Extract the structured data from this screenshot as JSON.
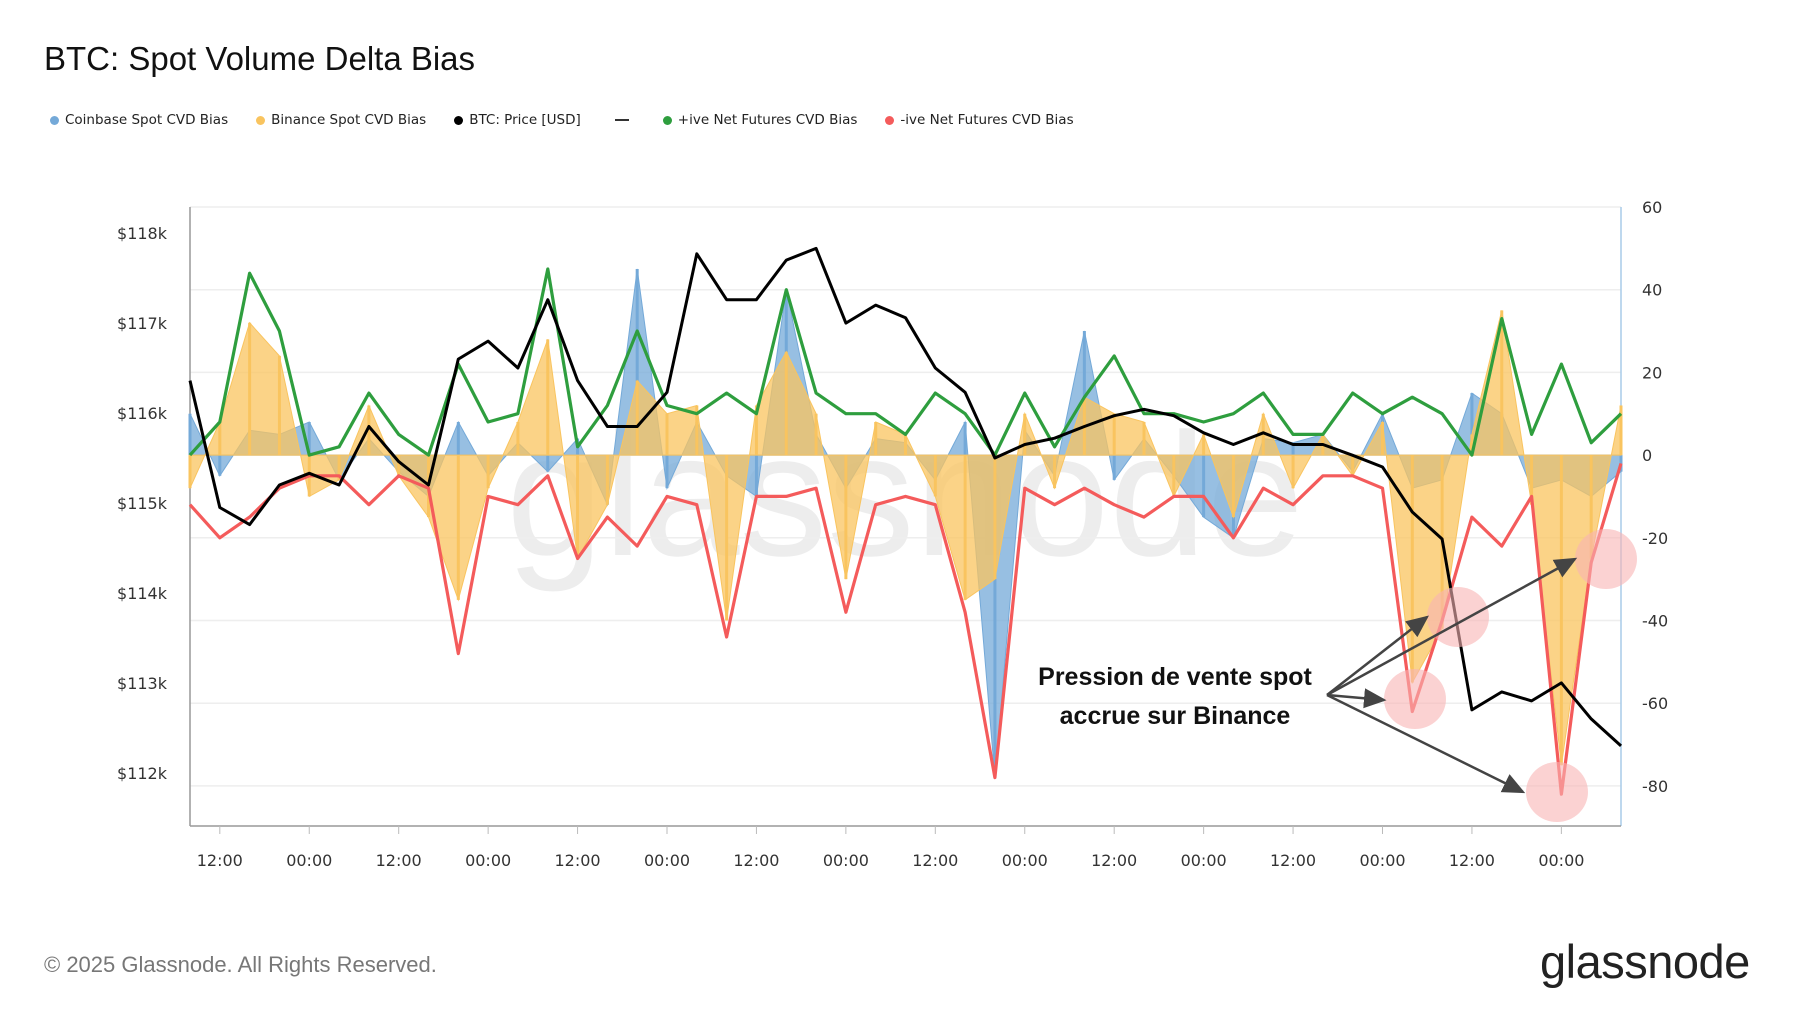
{
  "title": "BTC: Spot Volume Delta Bias",
  "legend": [
    {
      "label": "Coinbase Spot CVD Bias",
      "color": "#74a9d8"
    },
    {
      "label": "Binance Spot CVD Bias",
      "color": "#f9c45f"
    },
    {
      "label": "BTC: Price [USD]",
      "color": "#000000"
    },
    {
      "label": "+ive Net Futures CVD Bias",
      "color": "#2e9e3e"
    },
    {
      "label": "-ive Net Futures CVD Bias",
      "color": "#f45b5b"
    }
  ],
  "annotation": {
    "line1": "Pression de vente spot",
    "line2": "accrue sur Binance",
    "highlight_color": "#f8b4b4"
  },
  "watermark": "glassnode",
  "footer": "© 2025 Glassnode. All Rights Reserved.",
  "logo": "glassnode",
  "chart_data": {
    "type": "line",
    "title": "BTC: Spot Volume Delta Bias",
    "grid": true,
    "legend_position": "top-left",
    "left_axis": {
      "ticks": [
        "$118k",
        "$117k",
        "$116k",
        "$115k",
        "$114k",
        "$113k",
        "$112k"
      ],
      "tick_values": [
        118,
        117,
        116,
        115,
        114,
        113,
        112
      ],
      "range": [
        111.41,
        118.29
      ],
      "unit": "k USD"
    },
    "right_axis": {
      "ticks": [
        "60",
        "40",
        "20",
        "0",
        "-20",
        "-40",
        "-60",
        "-80"
      ],
      "tick_values": [
        60,
        40,
        20,
        0,
        -20,
        -40,
        -60,
        -80
      ],
      "range": [
        -89.7,
        60
      ]
    },
    "x": [
      "08:00",
      "12:00",
      "16:00",
      "20:00",
      "00:00",
      "04:00",
      "08:00",
      "12:00",
      "16:00",
      "20:00",
      "00:00",
      "04:00",
      "08:00",
      "12:00",
      "16:00",
      "20:00",
      "00:00",
      "04:00",
      "08:00",
      "12:00",
      "16:00",
      "20:00",
      "00:00",
      "04:00",
      "08:00",
      "12:00",
      "16:00",
      "20:00",
      "00:00",
      "04:00",
      "08:00",
      "12:00",
      "16:00",
      "20:00",
      "00:00",
      "04:00",
      "08:00",
      "12:00",
      "16:00",
      "20:00",
      "00:00",
      "04:00",
      "08:00",
      "12:00",
      "16:00",
      "20:00",
      "00:00",
      "04:00",
      "08:00"
    ],
    "x_tick_labels": [
      "12:00",
      "00:00"
    ],
    "series": [
      {
        "name": "Coinbase Spot CVD Bias",
        "axis": "right",
        "style": "bars",
        "color": "#74a9d8",
        "values": [
          10,
          -5,
          6,
          5,
          8,
          -6,
          4,
          -4,
          -10,
          8,
          -5,
          3,
          -4,
          4,
          -12,
          45,
          -8,
          8,
          -5,
          -10,
          40,
          5,
          -8,
          4,
          3,
          -6,
          8,
          -78,
          6,
          -5,
          30,
          -6,
          4,
          -5,
          -15,
          -20,
          4,
          3,
          5,
          -4,
          10,
          -8,
          -6,
          15,
          10,
          -8,
          -6,
          -10,
          -4
        ]
      },
      {
        "name": "Binance Spot CVD Bias",
        "axis": "right",
        "style": "bars",
        "color": "#f9c45f",
        "values": [
          -8,
          8,
          32,
          24,
          -10,
          -6,
          12,
          -5,
          -15,
          -35,
          -8,
          8,
          28,
          -25,
          -12,
          18,
          10,
          12,
          -40,
          12,
          25,
          10,
          -30,
          8,
          5,
          -10,
          -35,
          -30,
          10,
          -8,
          14,
          10,
          8,
          -10,
          5,
          -15,
          10,
          -8,
          5,
          -5,
          8,
          -55,
          -42,
          5,
          35,
          -12,
          -75,
          -25,
          12
        ]
      },
      {
        "name": "+ive Net Futures CVD Bias",
        "axis": "right",
        "style": "line",
        "color": "#2e9e3e",
        "values": [
          0,
          8,
          44,
          30,
          0,
          2,
          15,
          5,
          0,
          22,
          8,
          10,
          45,
          2,
          12,
          30,
          12,
          10,
          15,
          10,
          40,
          15,
          10,
          10,
          5,
          15,
          10,
          0,
          15,
          2,
          14,
          24,
          10,
          10,
          8,
          10,
          15,
          5,
          5,
          15,
          10,
          14,
          10,
          0,
          33,
          5,
          22,
          3,
          10
        ]
      },
      {
        "name": "-ive Net Futures CVD Bias",
        "axis": "right",
        "style": "line",
        "color": "#f45b5b",
        "values": [
          -12,
          -20,
          -15,
          -8,
          -5,
          -5,
          -12,
          -5,
          -8,
          -48,
          -10,
          -12,
          -5,
          -25,
          -15,
          -22,
          -10,
          -12,
          -44,
          -10,
          -10,
          -8,
          -38,
          -12,
          -10,
          -12,
          -38,
          -78,
          -8,
          -12,
          -8,
          -12,
          -15,
          -10,
          -10,
          -20,
          -8,
          -12,
          -5,
          -5,
          -8,
          -62,
          -40,
          -15,
          -22,
          -10,
          -82,
          -26,
          -2
        ]
      },
      {
        "name": "BTC: Price [USD]",
        "axis": "left",
        "style": "line",
        "color": "#000000",
        "values": [
          116.36,
          114.95,
          114.76,
          115.2,
          115.33,
          115.2,
          115.85,
          115.46,
          115.2,
          116.6,
          116.8,
          116.5,
          117.26,
          116.36,
          115.85,
          115.85,
          116.23,
          117.77,
          117.26,
          117.26,
          117.7,
          117.83,
          117.0,
          117.2,
          117.06,
          116.5,
          116.23,
          115.5,
          115.65,
          115.72,
          115.85,
          115.97,
          116.04,
          115.97,
          115.78,
          115.65,
          115.78,
          115.65,
          115.65,
          115.53,
          115.4,
          114.9,
          114.6,
          112.7,
          112.9,
          112.8,
          113.0,
          112.6,
          112.3
        ]
      }
    ]
  }
}
